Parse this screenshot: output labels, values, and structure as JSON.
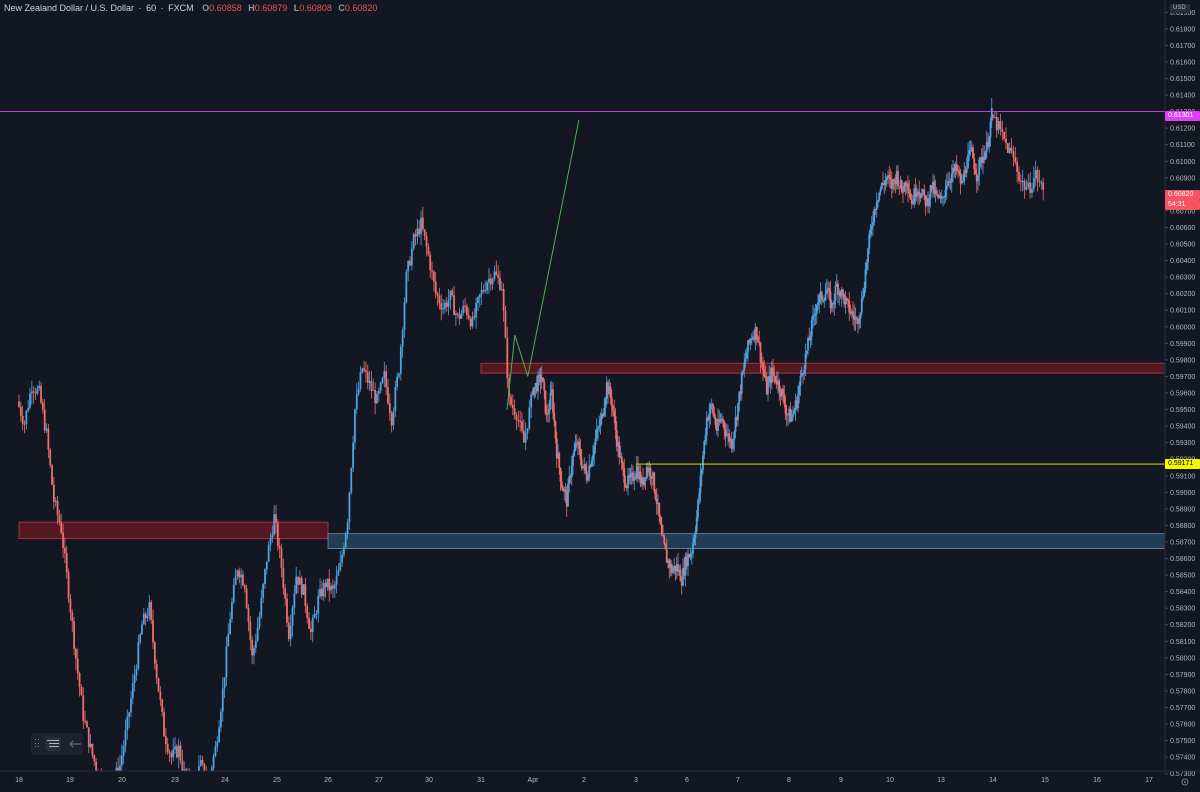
{
  "header": {
    "symbol": "New Zealand Dollar / U.S. Dollar",
    "interval": "60",
    "exchange": "FXCM",
    "open_label": "O",
    "open": "0.60858",
    "high_label": "H",
    "high": "0.60879",
    "low_label": "L",
    "low": "0.60808",
    "close_label": "C",
    "close": "0.60820"
  },
  "axis": {
    "currency_badge": "USD",
    "settings_icon": "gear-icon"
  },
  "toolbar": {
    "icons": [
      "drag-grip-icon",
      "object-tree-icon",
      "collapse-arrow-icon"
    ]
  },
  "colors": {
    "background": "#131722",
    "up": "#4fa3e0",
    "down": "#ef6f6a",
    "resistance_line": "#e040fb",
    "support_line": "#f5f500",
    "supply_zone": "#8b1a22",
    "demand_zone": "#2a4a66",
    "projection": "#4caf50",
    "price_badge": "#f7525f"
  },
  "chart_data": {
    "type": "candlestick",
    "title": "New Zealand Dollar / U.S. Dollar",
    "interval": "60",
    "ylim": [
      0.5725,
      0.6195
    ],
    "y_ticks": [
      "0.61900",
      "0.61800",
      "0.61700",
      "0.61600",
      "0.61500",
      "0.61400",
      "0.61300",
      "0.61200",
      "0.61100",
      "0.61000",
      "0.60900",
      "0.60800",
      "0.60700",
      "0.60600",
      "0.60500",
      "0.60400",
      "0.60300",
      "0.60200",
      "0.60100",
      "0.60000",
      "0.59900",
      "0.59800",
      "0.59700",
      "0.59600",
      "0.59500",
      "0.59400",
      "0.59300",
      "0.59200",
      "0.59100",
      "0.59000",
      "0.58900",
      "0.58800",
      "0.58700",
      "0.58600",
      "0.58500",
      "0.58400",
      "0.58300",
      "0.58200",
      "0.58100",
      "0.58000",
      "0.57900",
      "0.57800",
      "0.57700",
      "0.57600",
      "0.57500",
      "0.57400",
      "0.57300"
    ],
    "x_ticks": [
      "18",
      "19",
      "20",
      "23",
      "24",
      "25",
      "26",
      "27",
      "30",
      "31",
      "Apr",
      "2",
      "3",
      "6",
      "7",
      "8",
      "9",
      "10",
      "13",
      "14",
      "15",
      "16",
      "17"
    ],
    "grid": false,
    "last_price": "0.60820",
    "countdown": "54:31",
    "series": [
      {
        "kind": "ohlc",
        "segments": [
          {
            "from": "18",
            "to": "Apr",
            "closes": [
              0.5955,
              0.5942,
              0.5965,
              0.596,
              0.5935,
              0.5895,
              0.5878,
              0.584,
              0.58,
              0.5765,
              0.5745,
              0.573,
              0.5725,
              0.5725,
              0.5735,
              0.576,
              0.579,
              0.582,
              0.583,
              0.579,
              0.5755,
              0.574,
              0.5745,
              0.5725,
              0.5725,
              0.5735,
              0.5725,
              0.5745,
              0.578,
              0.5825,
              0.5855,
              0.5845,
              0.58,
              0.5825,
              0.586,
              0.5885,
              0.5855,
              0.5815,
              0.585,
              0.584,
              0.5815,
              0.5835,
              0.5845,
              0.584,
              0.5855,
              0.5885,
              0.595,
              0.5975,
              0.5965,
              0.5955,
              0.597,
              0.5945,
              0.5975,
              0.603,
              0.6052,
              0.6062,
              0.6043,
              0.602,
              0.6012,
              0.6018,
              0.6005,
              0.6012,
              0.6002,
              0.6018,
              0.6028,
              0.6032,
              0.6025,
              0.5955,
              0.5948,
              0.593,
              0.5955
            ]
          },
          {
            "from": "Apr",
            "to": "14",
            "closes": [
              0.5962,
              0.5965,
              0.597,
              0.5945,
              0.596,
              0.5925,
              0.5905,
              0.5895,
              0.5918,
              0.593,
              0.5918,
              0.591,
              0.5922,
              0.5935,
              0.5945,
              0.5965,
              0.5955,
              0.5932,
              0.5915,
              0.5905,
              0.5908,
              0.5915,
              0.5905,
              0.5915,
              0.5912,
              0.5895,
              0.5872,
              0.586,
              0.5853,
              0.5855,
              0.5848,
              0.586,
              0.5865,
              0.5885,
              0.5915,
              0.5945,
              0.5952,
              0.5938,
              0.5945,
              0.5935,
              0.593,
              0.5948,
              0.5968,
              0.5985,
              0.5995,
              0.5998,
              0.5978,
              0.5962,
              0.5972,
              0.5968,
              0.596,
              0.5948,
              0.5945,
              0.5955,
              0.5972,
              0.5985,
              0.6,
              0.6015,
              0.6018,
              0.6022,
              0.6012,
              0.6025,
              0.602,
              0.6013,
              0.6008,
              0.6003,
              0.6015,
              0.604,
              0.6063,
              0.6078,
              0.6085,
              0.609,
              0.6085,
              0.6092,
              0.6082,
              0.609,
              0.6075,
              0.6085,
              0.608,
              0.6075,
              0.6085,
              0.6078,
              0.6075,
              0.6088,
              0.6092,
              0.6095,
              0.6085,
              0.61,
              0.6105,
              0.6092,
              0.6102,
              0.6108,
              0.6128
            ]
          },
          {
            "from": "14",
            "to": "15",
            "closes": [
              0.6128,
              0.612,
              0.611,
              0.6102,
              0.6088,
              0.6083,
              0.6092,
              0.6082
            ]
          }
        ]
      }
    ],
    "annotations": [
      {
        "kind": "horizontal_line",
        "price": 0.61301,
        "label": "0.61301"
      },
      {
        "kind": "horizontal_line",
        "price": 0.59171,
        "label": "0.59171",
        "from_x": "3"
      },
      {
        "kind": "zone",
        "name": "supply-zone-upper",
        "from_x": "31",
        "to_x": "end",
        "price_top": 0.5978,
        "price_bottom": 0.5972
      },
      {
        "kind": "zone",
        "name": "supply-zone-lower",
        "from_x": "18",
        "to_x": "26",
        "price_top": 0.5882,
        "price_bottom": 0.5872
      },
      {
        "kind": "zone",
        "name": "demand-zone",
        "from_x": "26",
        "to_x": "end",
        "price_top": 0.5875,
        "price_bottom": 0.5866
      },
      {
        "kind": "polyline",
        "name": "projection-path",
        "points": [
          [
            9.5,
            0.595
          ],
          [
            9.65,
            0.5995
          ],
          [
            9.9,
            0.597
          ],
          [
            10.9,
            0.6125
          ]
        ]
      }
    ]
  }
}
